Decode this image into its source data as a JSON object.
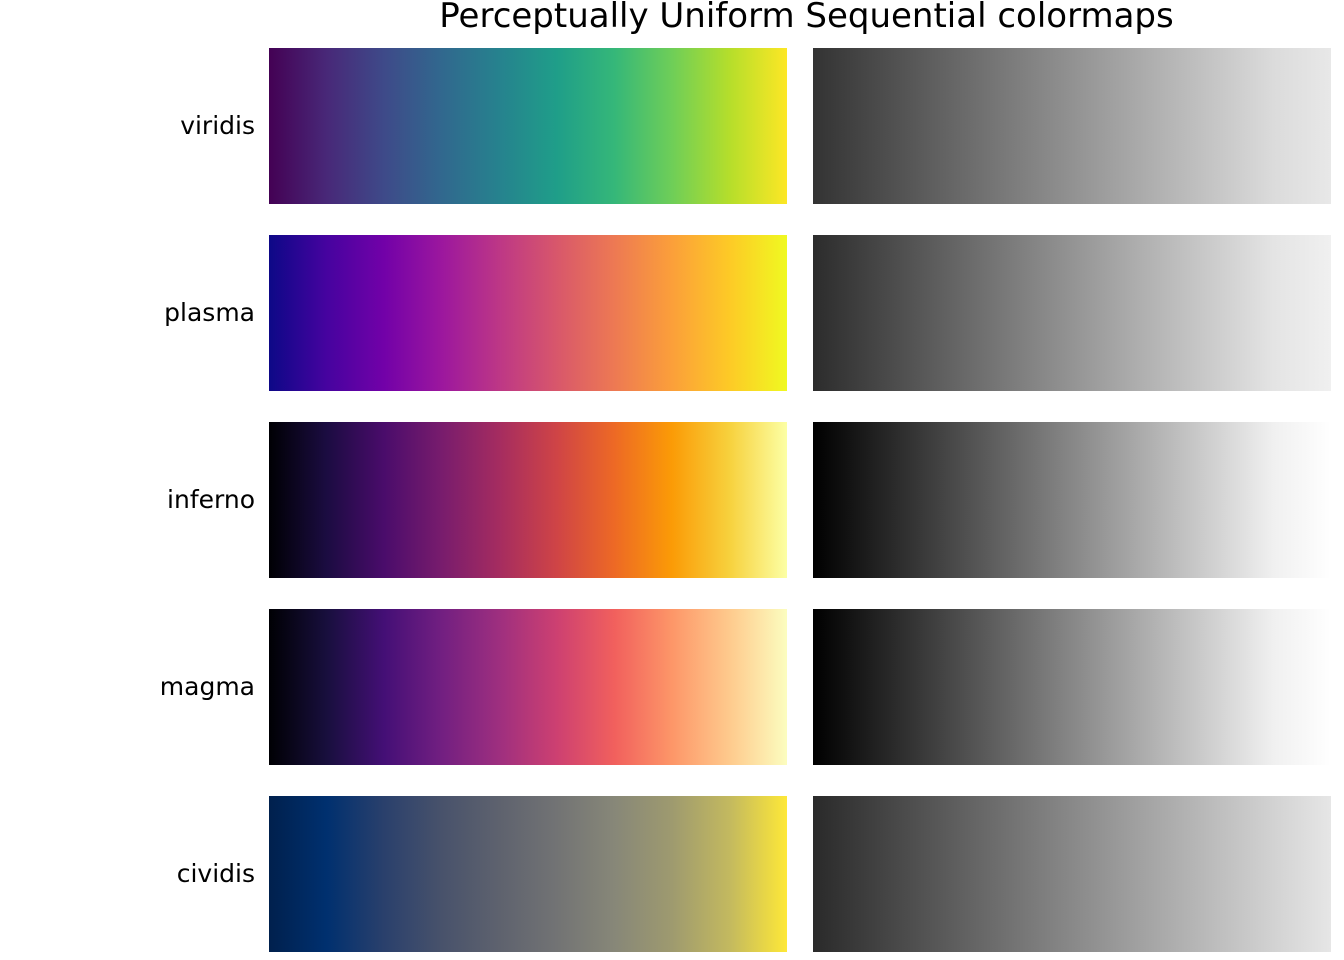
{
  "chart_data": {
    "type": "heatmap",
    "title": "Perceptually Uniform Sequential colormaps",
    "xlabel": "",
    "ylabel": "",
    "grid": false,
    "legend": "none",
    "colormaps": [
      {
        "name": "viridis",
        "colors": [
          "#440154",
          "#482878",
          "#3e4a89",
          "#31688e",
          "#26828e",
          "#1f9e89",
          "#35b779",
          "#6ece58",
          "#b5de2b",
          "#fde725"
        ],
        "grayscale": [
          "#333333",
          "#484848",
          "#5d5d5d",
          "#727272",
          "#878787",
          "#9c9c9c",
          "#b1b1b1",
          "#c6c6c6",
          "#dbdbdb",
          "#e8e8e8"
        ]
      },
      {
        "name": "plasma",
        "colors": [
          "#0d0887",
          "#46039f",
          "#7201a8",
          "#9c179e",
          "#bd3786",
          "#d8576b",
          "#ed7953",
          "#fb9f3a",
          "#fdca26",
          "#f0f921"
        ],
        "grayscale": [
          "#2c2c2c",
          "#434343",
          "#5a5a5a",
          "#717171",
          "#888888",
          "#9f9f9f",
          "#b6b6b6",
          "#cdcdcd",
          "#e4e4e4",
          "#f0f0f0"
        ]
      },
      {
        "name": "inferno",
        "colors": [
          "#000004",
          "#1b0c41",
          "#4a0c6b",
          "#781c6d",
          "#a52c60",
          "#cf4446",
          "#ed6925",
          "#fb9b06",
          "#f7d13d",
          "#fcffa4"
        ],
        "grayscale": [
          "#000000",
          "#1e1e1e",
          "#3c3c3c",
          "#5a5a5a",
          "#787878",
          "#969696",
          "#b4b4b4",
          "#d2d2d2",
          "#f0f0f0",
          "#ffffff"
        ]
      },
      {
        "name": "magma",
        "colors": [
          "#000004",
          "#180f3d",
          "#440f76",
          "#721f81",
          "#9e2f7f",
          "#cd4071",
          "#f1605d",
          "#fd9668",
          "#feca8d",
          "#fcfdbf"
        ],
        "grayscale": [
          "#000000",
          "#1e1e1e",
          "#3c3c3c",
          "#5a5a5a",
          "#787878",
          "#969696",
          "#b4b4b4",
          "#d2d2d2",
          "#f0f0f0",
          "#ffffff"
        ]
      },
      {
        "name": "cividis",
        "colors": [
          "#00204d",
          "#00306f",
          "#2a406c",
          "#48526b",
          "#5e626e",
          "#727374",
          "#878778",
          "#9e9a6f",
          "#c3b95f",
          "#fee838"
        ],
        "grayscale": [
          "#2a2a2a",
          "#3f3f3f",
          "#545454",
          "#696969",
          "#7e7e7e",
          "#939393",
          "#a8a8a8",
          "#bdbdbd",
          "#d2d2d2",
          "#e6e6e6"
        ]
      }
    ]
  }
}
